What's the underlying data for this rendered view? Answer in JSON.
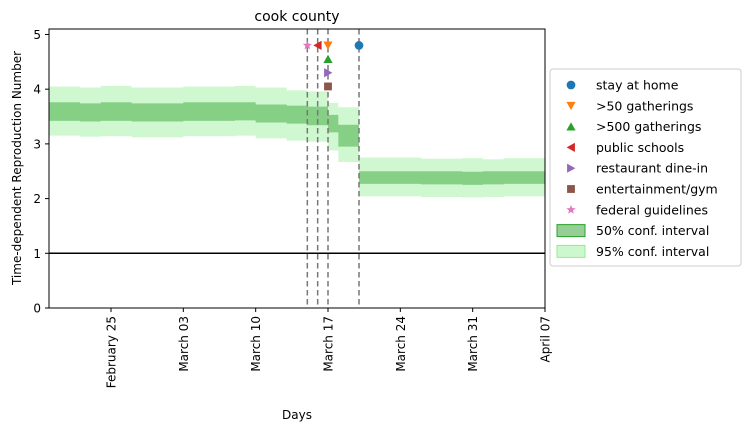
{
  "chart_data": {
    "type": "area",
    "title": "cook county",
    "xlabel": "Days",
    "ylabel": "Time-dependent Reproduction Number",
    "x_tick_labels": [
      "February 25",
      "March 03",
      "March 10",
      "March 17",
      "March 24",
      "March 31",
      "April 07"
    ],
    "x_tick_days": [
      6,
      13,
      20,
      27,
      34,
      41,
      48
    ],
    "xlim": [
      0,
      48
    ],
    "ylim": [
      0,
      5
    ],
    "y_ticks": [
      0,
      1,
      2,
      3,
      4,
      5
    ],
    "grid": false,
    "legend_position": "center-right",
    "reference_line": {
      "y": 1
    },
    "intervention_days": [
      25,
      26,
      27,
      30
    ],
    "ci50": {
      "x": [
        0,
        3,
        3,
        5,
        5,
        8,
        8,
        13,
        13,
        18,
        18,
        20,
        20,
        23,
        23,
        25,
        25,
        27,
        27,
        28,
        28,
        30,
        30,
        36,
        36,
        40,
        40,
        42,
        42,
        44,
        44,
        48
      ],
      "upper": [
        3.76,
        3.76,
        3.74,
        3.74,
        3.76,
        3.76,
        3.74,
        3.74,
        3.76,
        3.76,
        3.76,
        3.76,
        3.72,
        3.72,
        3.7,
        3.7,
        3.68,
        3.68,
        3.53,
        3.53,
        3.35,
        3.35,
        2.5,
        2.5,
        2.5,
        2.5,
        2.49,
        2.49,
        2.5,
        2.5,
        2.5,
        2.5
      ],
      "lower": [
        3.42,
        3.42,
        3.41,
        3.41,
        3.42,
        3.42,
        3.41,
        3.41,
        3.42,
        3.42,
        3.43,
        3.43,
        3.39,
        3.39,
        3.37,
        3.37,
        3.34,
        3.34,
        3.21,
        3.21,
        2.95,
        2.95,
        2.27,
        2.27,
        2.26,
        2.26,
        2.25,
        2.25,
        2.26,
        2.26,
        2.27,
        2.27
      ]
    },
    "ci95": {
      "x": [
        0,
        3,
        3,
        5,
        5,
        8,
        8,
        13,
        13,
        18,
        18,
        20,
        20,
        23,
        23,
        25,
        25,
        27,
        27,
        28,
        28,
        30,
        30,
        36,
        36,
        40,
        40,
        42,
        42,
        44,
        44,
        48
      ],
      "upper": [
        4.05,
        4.05,
        4.03,
        4.03,
        4.06,
        4.06,
        4.03,
        4.03,
        4.05,
        4.05,
        4.06,
        4.06,
        4.03,
        4.03,
        3.98,
        3.98,
        3.96,
        3.96,
        3.75,
        3.75,
        3.67,
        3.67,
        2.75,
        2.75,
        2.73,
        2.73,
        2.74,
        2.74,
        2.72,
        2.72,
        2.74,
        2.74
      ],
      "lower": [
        3.15,
        3.15,
        3.13,
        3.13,
        3.14,
        3.14,
        3.12,
        3.12,
        3.14,
        3.14,
        3.15,
        3.15,
        3.1,
        3.1,
        3.06,
        3.06,
        3.04,
        3.04,
        2.88,
        2.88,
        2.67,
        2.67,
        2.04,
        2.04,
        2.03,
        2.03,
        2.02,
        2.02,
        2.03,
        2.03,
        2.04,
        2.04
      ]
    },
    "series": [
      {
        "name": "stay at home",
        "x": 30,
        "y": 4.8,
        "marker": "circle",
        "color": "#1f77b4"
      },
      {
        "name": ">50 gatherings",
        "x": 27,
        "y": 4.8,
        "marker": "triangle-down",
        "color": "#ff7f0e"
      },
      {
        "name": ">500 gatherings",
        "x": 27,
        "y": 4.55,
        "marker": "triangle-up",
        "color": "#2ca02c"
      },
      {
        "name": "public schools",
        "x": 26,
        "y": 4.8,
        "marker": "triangle-left",
        "color": "#d62728"
      },
      {
        "name": "restaurant dine-in",
        "x": 27,
        "y": 4.3,
        "marker": "triangle-right",
        "color": "#9467bd"
      },
      {
        "name": "entertainment/gym",
        "x": 27,
        "y": 4.05,
        "marker": "square",
        "color": "#8c564b"
      },
      {
        "name": "federal guidelines",
        "x": 25,
        "y": 4.8,
        "marker": "star",
        "color": "#e377c2"
      }
    ],
    "bands": [
      {
        "name": "50% conf. interval",
        "color": "#2ca02c"
      },
      {
        "name": "95% conf. interval",
        "color": "#90ee90"
      }
    ]
  }
}
